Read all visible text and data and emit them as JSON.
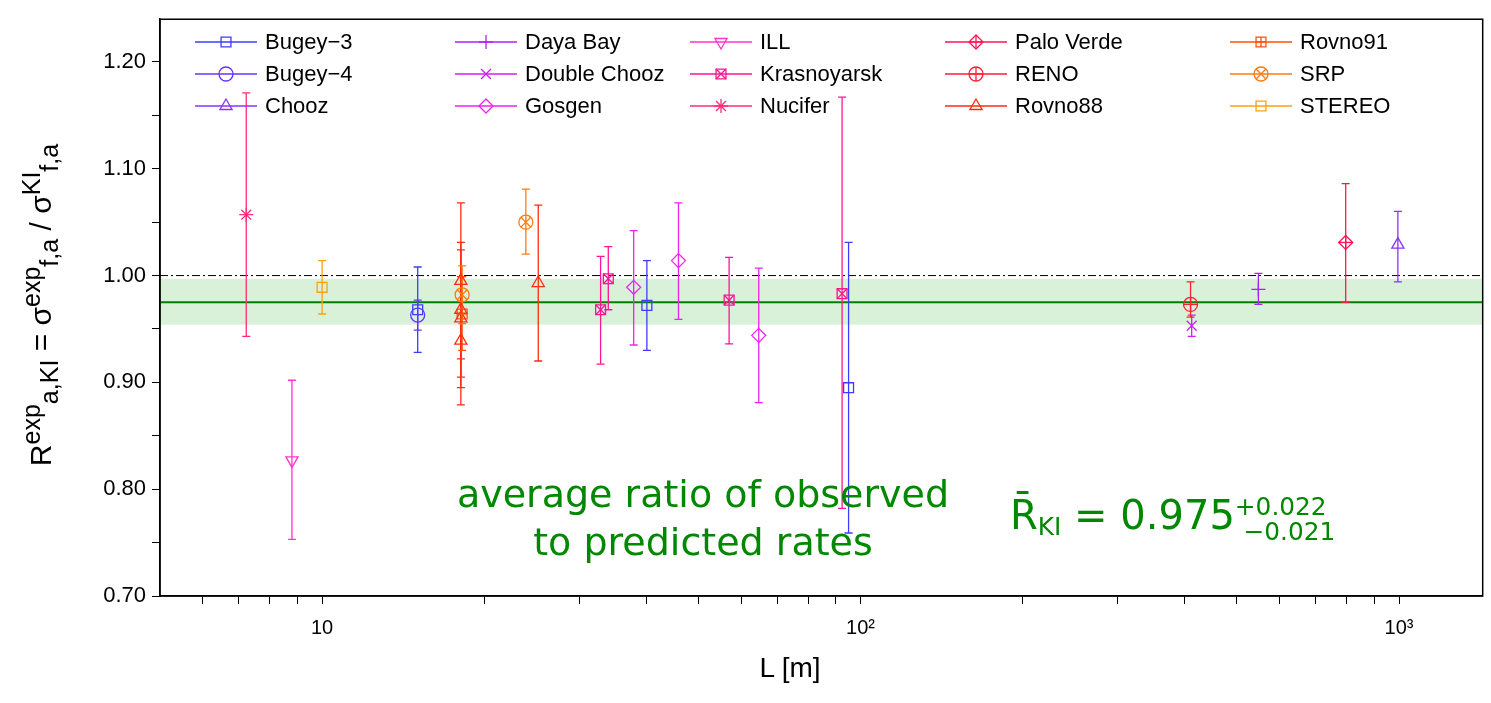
{
  "chart_data": {
    "type": "scatter",
    "xlabel": "L [m]",
    "ylabel": "R$^{exp}$$_{a,KI}$ = σ$^{exp}$$_{f,a}$ / σ$^{KI}$$_{f,a}$",
    "annotations": [
      "average ratio of observed to predicted rates",
      "R̄$_{KI}$ = 0.975$^{+0.022}$$_{−0.021}$"
    ],
    "log": "x",
    "legend": "top",
    "xlim": [
      5,
      1430
    ],
    "xticks": [
      {
        "value": 6,
        "label": null
      },
      {
        "value": 7,
        "label": null
      },
      {
        "value": 8,
        "label": null
      },
      {
        "value": 9,
        "label": null
      },
      10,
      {
        "value": 20,
        "label": null
      },
      {
        "value": 30,
        "label": null
      },
      {
        "value": 40,
        "label": null
      },
      {
        "value": 50,
        "label": null
      },
      {
        "value": 60,
        "label": null
      },
      {
        "value": 70,
        "label": null
      },
      {
        "value": 80,
        "label": null
      },
      {
        "value": 90,
        "label": null
      },
      {
        "value": 100,
        "label": "10²"
      },
      {
        "value": 200,
        "label": null
      },
      {
        "value": 300,
        "label": null
      },
      {
        "value": 400,
        "label": null
      },
      {
        "value": 500,
        "label": null
      },
      {
        "value": 600,
        "label": null
      },
      {
        "value": 700,
        "label": null
      },
      {
        "value": 800,
        "label": null
      },
      {
        "value": 900,
        "label": null
      },
      {
        "value": 1000,
        "label": "10³"
      }
    ],
    "ylim": [
      0.7,
      1.24
    ],
    "yticks": [
      {
        "value": 0.7,
        "label": "0.70"
      },
      {
        "value": 0.75,
        "label": null
      },
      {
        "value": 0.8,
        "label": "0.80"
      },
      {
        "value": 0.85,
        "label": null
      },
      {
        "value": 0.9,
        "label": "0.90"
      },
      {
        "value": 0.95,
        "label": null
      },
      {
        "value": 1.0,
        "label": "1.00"
      },
      {
        "value": 1.05,
        "label": null
      },
      {
        "value": 1.1,
        "label": "1.10"
      },
      {
        "value": 1.15,
        "label": null
      },
      {
        "value": 1.2,
        "label": "1.20"
      }
    ],
    "ref_lines": [
      {
        "axis": "y",
        "value": 1.0,
        "color": "#000000",
        "line_style": "dashed"
      },
      {
        "axis": "y",
        "value": 0.975,
        "color": "#008000",
        "line_style": "solid"
      }
    ],
    "bands": [
      {
        "axis": "y",
        "from": 0.954,
        "to": 0.997,
        "color": "#00a000"
      }
    ],
    "series": [
      {
        "name": "Bugey−3",
        "color": "#3d3dff",
        "marker": "square",
        "x": [
          15.05,
          40.1,
          95.0
        ],
        "values": [
          0.968,
          0.972,
          0.895
        ],
        "errors": [
          [
            0.928,
            1.008
          ],
          [
            0.93,
            1.014
          ],
          [
            0.759,
            1.031
          ]
        ]
      },
      {
        "name": "Bugey−4",
        "color": "#6633ff",
        "marker": "circle",
        "x": [
          15.05
        ],
        "values": [
          0.963
        ],
        "errors": [
          [
            0.949,
            0.977
          ]
        ]
      },
      {
        "name": "Chooz",
        "color": "#8833ff",
        "marker": "triangle",
        "x": [
          995
        ],
        "values": [
          1.029
        ],
        "errors": [
          [
            0.994,
            1.06
          ]
        ]
      },
      {
        "name": "Daya Bay",
        "color": "#b020f0",
        "marker": "cross",
        "x": [
          548
        ],
        "values": [
          0.987
        ],
        "errors": [
          [
            0.973,
            1.002
          ]
        ]
      },
      {
        "name": "Double Chooz",
        "color": "#d020f0",
        "marker": "x",
        "x": [
          412
        ],
        "values": [
          0.953
        ],
        "errors": [
          [
            0.943,
            0.963
          ]
        ]
      },
      {
        "name": "Gosgen",
        "color": "#ee22ee",
        "marker": "diamond",
        "x": [
          37.9,
          45.9,
          64.7
        ],
        "values": [
          0.989,
          1.014,
          0.944
        ],
        "errors": [
          [
            0.935,
            1.042
          ],
          [
            0.959,
            1.068
          ],
          [
            0.881,
            1.007
          ]
        ]
      },
      {
        "name": "ILL",
        "color": "#ff33cc",
        "marker": "triangle-down",
        "x": [
          8.79
        ],
        "values": [
          0.827
        ],
        "errors": [
          [
            0.753,
            0.902
          ]
        ]
      },
      {
        "name": "Krasnoyarsk",
        "color": "#ff1493",
        "marker": "square-x",
        "x": [
          32.9,
          34.0,
          57.0,
          92.4
        ],
        "values": [
          0.968,
          0.997,
          0.977,
          0.983
        ],
        "errors": [
          [
            0.917,
            1.018
          ],
          [
            0.968,
            1.027
          ],
          [
            0.936,
            1.017
          ],
          [
            0.782,
            1.167
          ]
        ]
      },
      {
        "name": "Nucifer",
        "color": "#ff2a7a",
        "marker": "cross-x",
        "x": [
          7.23
        ],
        "values": [
          1.057
        ],
        "errors": [
          [
            0.943,
            1.171
          ]
        ]
      },
      {
        "name": "Palo Verde",
        "color": "#ff1555",
        "marker": "diamond-plus",
        "x": [
          796
        ],
        "values": [
          1.031
        ],
        "errors": [
          [
            0.975,
            1.086
          ]
        ]
      },
      {
        "name": "RENO",
        "color": "#ff2030",
        "marker": "circle-plus",
        "x": [
          410
        ],
        "values": [
          0.973
        ],
        "errors": [
          [
            0.961,
            0.994
          ]
        ]
      },
      {
        "name": "Rovno88",
        "color": "#ff2a10",
        "marker": "triangle",
        "x": [
          18.1,
          18.1,
          18.1,
          18.1,
          25.2
        ],
        "values": [
          0.995,
          0.968,
          0.96,
          0.939,
          0.993
        ],
        "errors": [
          [
            0.922,
            1.068
          ],
          [
            0.905,
            1.031
          ],
          [
            0.895,
            1.024
          ],
          [
            0.879,
            0.999
          ],
          [
            0.92,
            1.066
          ]
        ]
      },
      {
        "name": "Rovno91",
        "color": "#ff5010",
        "marker": "square-plus",
        "x": [
          18.2
        ],
        "values": [
          0.964
        ],
        "errors": [
          [
            0.93,
            0.999
          ]
        ]
      },
      {
        "name": "SRP",
        "color": "#ff7a10",
        "marker": "circle-x",
        "x": [
          18.2,
          23.9
        ],
        "values": [
          0.982,
          1.05
        ],
        "errors": [
          [
            0.955,
            1.009
          ],
          [
            1.02,
            1.081
          ]
        ]
      },
      {
        "name": "STEREO",
        "color": "#ffa010",
        "marker": "square",
        "x": [
          10.0
        ],
        "values": [
          0.989
        ],
        "errors": [
          [
            0.964,
            1.014
          ]
        ]
      }
    ]
  }
}
